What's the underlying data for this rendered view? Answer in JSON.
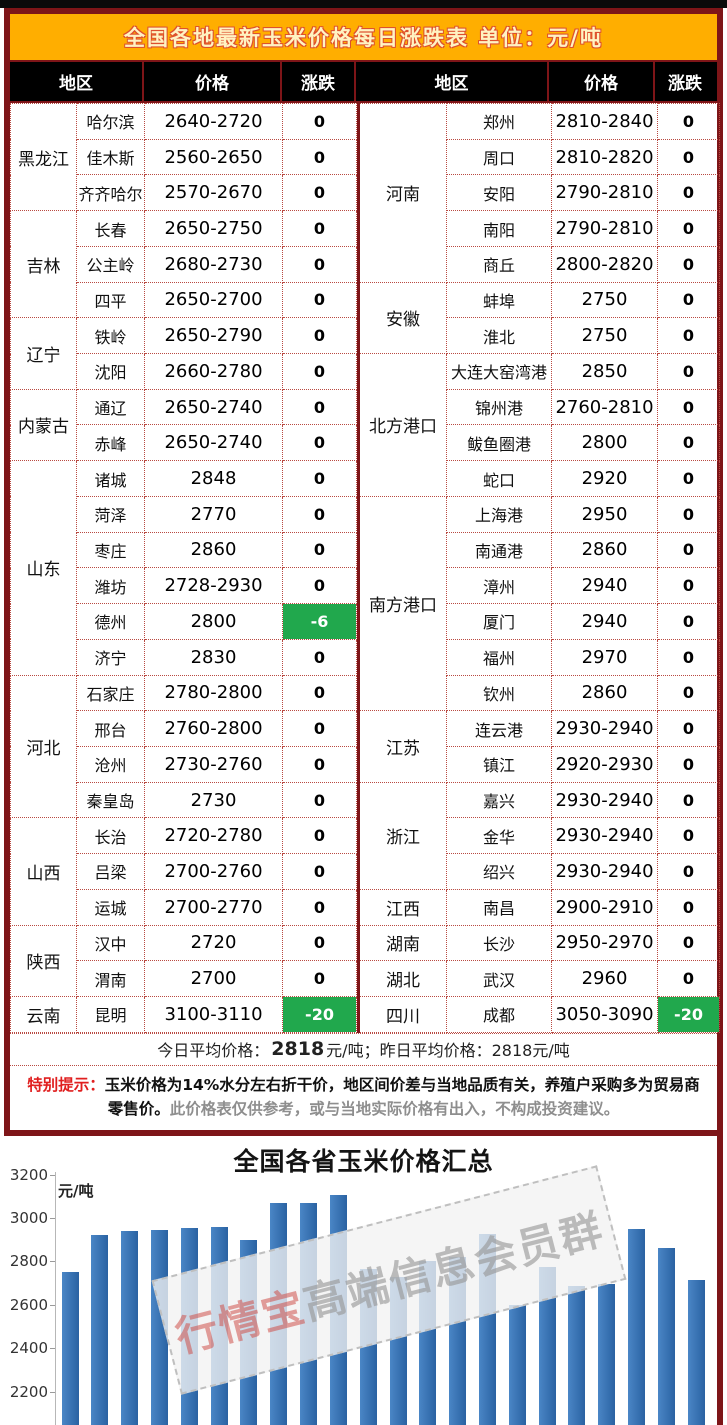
{
  "banner": {
    "title": "全国各地最新玉米价格每日涨跌表  单位：元/吨"
  },
  "table": {
    "header": {
      "region": "地区",
      "price": "价格",
      "change": "涨跌"
    },
    "left_groups": [
      {
        "region": "黑龙江",
        "rows": [
          [
            "哈尔滨",
            "2640-2720",
            "0"
          ],
          [
            "佳木斯",
            "2560-2650",
            "0"
          ],
          [
            "齐齐哈尔",
            "2570-2670",
            "0"
          ]
        ]
      },
      {
        "region": "吉林",
        "rows": [
          [
            "长春",
            "2650-2750",
            "0"
          ],
          [
            "公主岭",
            "2680-2730",
            "0"
          ],
          [
            "四平",
            "2650-2700",
            "0"
          ]
        ]
      },
      {
        "region": "辽宁",
        "rows": [
          [
            "铁岭",
            "2650-2790",
            "0"
          ],
          [
            "沈阳",
            "2660-2780",
            "0"
          ]
        ]
      },
      {
        "region": "内蒙古",
        "rows": [
          [
            "通辽",
            "2650-2740",
            "0"
          ],
          [
            "赤峰",
            "2650-2740",
            "0"
          ]
        ]
      },
      {
        "region": "山东",
        "rows": [
          [
            "诸城",
            "2848",
            "0"
          ],
          [
            "菏泽",
            "2770",
            "0"
          ],
          [
            "枣庄",
            "2860",
            "0"
          ],
          [
            "潍坊",
            "2728-2930",
            "0"
          ],
          [
            "德州",
            "2800",
            "-6"
          ],
          [
            "济宁",
            "2830",
            "0"
          ]
        ]
      },
      {
        "region": "河北",
        "rows": [
          [
            "石家庄",
            "2780-2800",
            "0"
          ],
          [
            "邢台",
            "2760-2800",
            "0"
          ],
          [
            "沧州",
            "2730-2760",
            "0"
          ],
          [
            "秦皇岛",
            "2730",
            "0"
          ]
        ]
      },
      {
        "region": "山西",
        "rows": [
          [
            "长治",
            "2720-2780",
            "0"
          ],
          [
            "吕梁",
            "2700-2760",
            "0"
          ],
          [
            "运城",
            "2700-2770",
            "0"
          ]
        ]
      },
      {
        "region": "陕西",
        "rows": [
          [
            "汉中",
            "2720",
            "0"
          ],
          [
            "渭南",
            "2700",
            "0"
          ]
        ]
      },
      {
        "region": "云南",
        "rows": [
          [
            "昆明",
            "3100-3110",
            "-20"
          ]
        ]
      }
    ],
    "right_groups": [
      {
        "region": "河南",
        "rows": [
          [
            "郑州",
            "2810-2840",
            "0"
          ],
          [
            "周口",
            "2810-2820",
            "0"
          ],
          [
            "安阳",
            "2790-2810",
            "0"
          ],
          [
            "南阳",
            "2790-2810",
            "0"
          ],
          [
            "商丘",
            "2800-2820",
            "0"
          ]
        ]
      },
      {
        "region": "安徽",
        "rows": [
          [
            "蚌埠",
            "2750",
            "0"
          ],
          [
            "淮北",
            "2750",
            "0"
          ]
        ]
      },
      {
        "region": "北方港口",
        "rows": [
          [
            "大连大窑湾港",
            "2850",
            "0"
          ],
          [
            "锦州港",
            "2760-2810",
            "0"
          ],
          [
            "鲅鱼圈港",
            "2800",
            "0"
          ],
          [
            "蛇口",
            "2920",
            "0"
          ]
        ]
      },
      {
        "region": "南方港口",
        "rows": [
          [
            "上海港",
            "2950",
            "0"
          ],
          [
            "南通港",
            "2860",
            "0"
          ],
          [
            "漳州",
            "2940",
            "0"
          ],
          [
            "厦门",
            "2940",
            "0"
          ],
          [
            "福州",
            "2970",
            "0"
          ],
          [
            "钦州",
            "2860",
            "0"
          ]
        ]
      },
      {
        "region": "江苏",
        "rows": [
          [
            "连云港",
            "2930-2940",
            "0"
          ],
          [
            "镇江",
            "2920-2930",
            "0"
          ]
        ]
      },
      {
        "region": "浙江",
        "rows": [
          [
            "嘉兴",
            "2930-2940",
            "0"
          ],
          [
            "金华",
            "2930-2940",
            "0"
          ],
          [
            "绍兴",
            "2930-2940",
            "0"
          ]
        ]
      },
      {
        "region": "江西",
        "rows": [
          [
            "南昌",
            "2900-2910",
            "0"
          ]
        ]
      },
      {
        "region": "湖南",
        "rows": [
          [
            "长沙",
            "2950-2970",
            "0"
          ]
        ]
      },
      {
        "region": "湖北",
        "rows": [
          [
            "武汉",
            "2960",
            "0"
          ]
        ]
      },
      {
        "region": "四川",
        "rows": [
          [
            "成都",
            "3050-3090",
            "-20"
          ]
        ]
      }
    ]
  },
  "summary": {
    "today_label": "今日平均价格：",
    "today_value": "2818",
    "today_unit": "元/吨；",
    "yesterday_label": "昨日平均价格：",
    "yesterday_value": "2818元/吨"
  },
  "notice": {
    "label": "特别提示：",
    "bold_text": "玉米价格为14%水分左右折干价，地区间价差与当地品质有关，养殖户采购多为贸易商零售价。",
    "gray_text": "此价格表仅供参考，或与当地实际价格有出入，不构成投资建议。"
  },
  "chart_data": {
    "type": "bar",
    "title": "全国各省玉米价格汇总",
    "ylabel": "元/吨",
    "yticks": [
      3200,
      3000,
      2800,
      2600,
      2400,
      2200
    ],
    "ylim": [
      2150,
      3250
    ],
    "categories": [],
    "x_axis_labels_visible": false,
    "grid": false,
    "values": [
      2750,
      2920,
      2940,
      2945,
      2955,
      2960,
      2900,
      3070,
      3070,
      3105,
      2765,
      2730,
      2800,
      2820,
      2925,
      2600,
      2775,
      2685,
      2695,
      2950,
      2860,
      2715
    ],
    "bar_color": "#2e74b5",
    "watermark": {
      "red_part": "行情宝",
      "gray_part": "高端信息会员群"
    }
  },
  "colors": {
    "banner_bg": "#ffae00",
    "banner_text": "#fff3c2",
    "banner_text_outline": "#dd4f2e",
    "board_border": "#7e1518",
    "inner_dotted": "#b94a42",
    "header_bg": "#000000",
    "change_down_bg": "#21a84d",
    "notice_red": "#e01f1f",
    "notice_gray": "#8e8e8e"
  }
}
